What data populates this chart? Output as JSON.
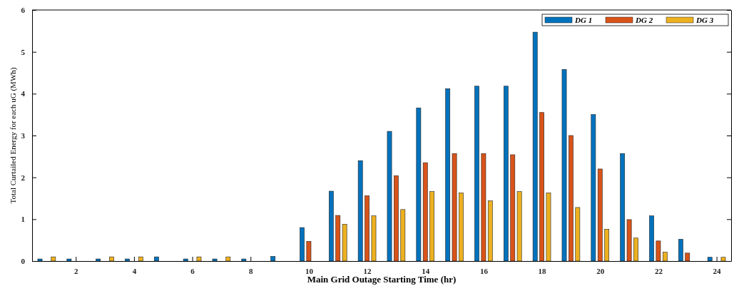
{
  "chart_data": {
    "type": "bar",
    "xlabel": "Main Grid Outage Starting Time (hr)",
    "ylabel": "Total Curtailed Energy for each uG (MWh)",
    "x": [
      1,
      2,
      3,
      4,
      5,
      6,
      7,
      8,
      9,
      10,
      11,
      12,
      13,
      14,
      15,
      16,
      17,
      18,
      19,
      20,
      21,
      22,
      23,
      24
    ],
    "series": [
      {
        "name": "DG 1",
        "color": "#0072bd",
        "values": [
          0.05,
          0.05,
          0.05,
          0.05,
          0.1,
          0.05,
          0.05,
          0.05,
          0.11,
          0.8,
          1.67,
          2.4,
          3.1,
          3.66,
          4.12,
          4.18,
          4.18,
          5.47,
          4.58,
          3.5,
          2.57,
          1.08,
          0.52,
          0.09
        ]
      },
      {
        "name": "DG 2",
        "color": "#d95319",
        "values": [
          0,
          0,
          0,
          0,
          0,
          0,
          0,
          0,
          0,
          0.47,
          1.09,
          1.56,
          2.04,
          2.35,
          2.57,
          2.57,
          2.54,
          3.55,
          3.0,
          2.2,
          0.99,
          0.48,
          0.19,
          0
        ]
      },
      {
        "name": "DG 3",
        "color": "#edb120",
        "values": [
          0.1,
          0,
          0.1,
          0.1,
          0,
          0.1,
          0.1,
          0,
          0,
          0,
          0.88,
          1.08,
          1.23,
          1.66,
          1.63,
          1.44,
          1.66,
          1.63,
          1.28,
          0.76,
          0.55,
          0.21,
          0,
          0.09
        ]
      }
    ],
    "xlim": [
      0.5,
      24.5
    ],
    "xticks": [
      2,
      4,
      6,
      8,
      10,
      12,
      14,
      16,
      18,
      20,
      22,
      24
    ],
    "ylim": [
      0,
      6
    ],
    "yticks": [
      0,
      1,
      2,
      3,
      4,
      5,
      6
    ],
    "grid": false,
    "legend": "top right"
  }
}
